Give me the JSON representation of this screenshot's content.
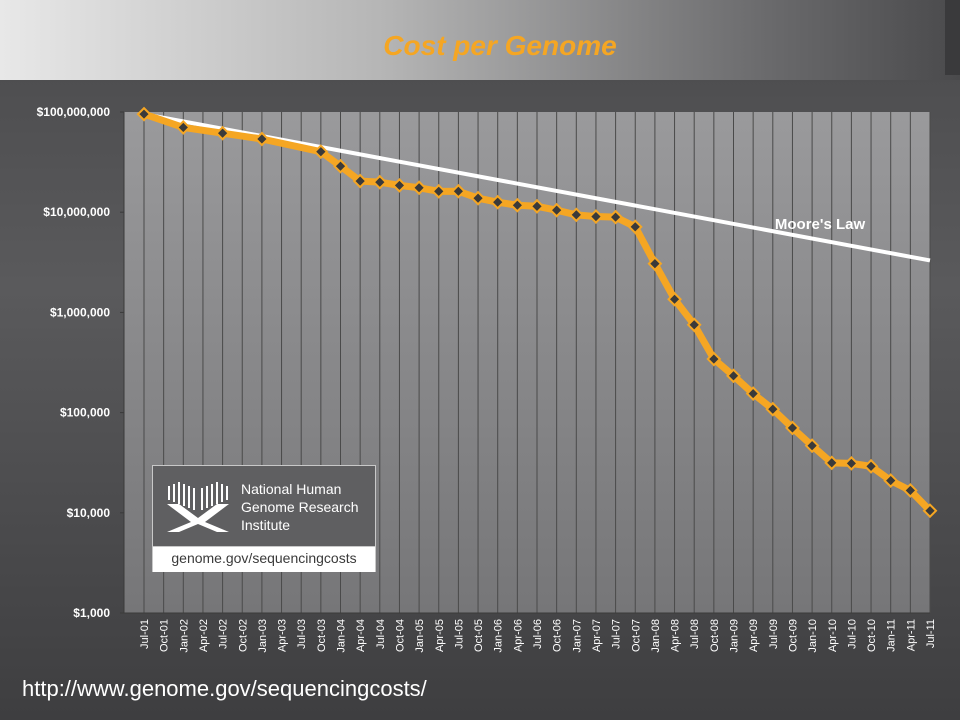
{
  "url_caption": "http://www.genome.gov/sequencingcosts/",
  "logo": {
    "name": "National Human Genome Research Institute",
    "url": "genome.gov/sequencingcosts"
  },
  "chart_data": {
    "type": "line",
    "title": "Cost per Genome",
    "xlabel": "",
    "ylabel": "",
    "yscale": "log",
    "ylim": [
      1000,
      100000000
    ],
    "yticks": [
      1000,
      10000,
      100000,
      1000000,
      10000000,
      100000000
    ],
    "ytick_labels": [
      "$1,000",
      "$10,000",
      "$100,000",
      "$1,000,000",
      "$10,000,000",
      "$100,000,000"
    ],
    "categories": [
      "Jul-01",
      "Oct-01",
      "Jan-02",
      "Apr-02",
      "Jul-02",
      "Oct-02",
      "Jan-03",
      "Apr-03",
      "Jul-03",
      "Oct-03",
      "Jan-04",
      "Apr-04",
      "Jul-04",
      "Oct-04",
      "Jan-05",
      "Apr-05",
      "Jul-05",
      "Oct-05",
      "Jan-06",
      "Apr-06",
      "Jul-06",
      "Oct-06",
      "Jan-07",
      "Apr-07",
      "Jul-07",
      "Oct-07",
      "Jan-08",
      "Apr-08",
      "Jul-08",
      "Oct-08",
      "Jan-09",
      "Apr-09",
      "Jul-09",
      "Oct-09",
      "Jan-10",
      "Apr-10",
      "Jul-10",
      "Oct-10",
      "Jan-11",
      "Apr-11",
      "Jul-11"
    ],
    "series": [
      {
        "name": "",
        "color": "#f5a623",
        "x": [
          "Jul-01",
          "Jan-02",
          "Jul-02",
          "Jan-03",
          "Oct-03",
          "Jan-04",
          "Apr-04",
          "Jul-04",
          "Oct-04",
          "Jan-05",
          "Apr-05",
          "Jul-05",
          "Oct-05",
          "Jan-06",
          "Apr-06",
          "Jul-06",
          "Oct-06",
          "Jan-07",
          "Apr-07",
          "Jul-07",
          "Oct-07",
          "Jan-08",
          "Apr-08",
          "Jul-08",
          "Oct-08",
          "Jan-09",
          "Apr-09",
          "Jul-09",
          "Oct-09",
          "Jan-10",
          "Apr-10",
          "Jul-10",
          "Oct-10",
          "Jan-11",
          "Apr-11",
          "Jul-11"
        ],
        "values": [
          95263072,
          70175437,
          61448422,
          53751684,
          40157554,
          28780376,
          20442576,
          19934346,
          18519312,
          17534970,
          16159699,
          16180224,
          13801124,
          12585659,
          11732535,
          11455315,
          10474556,
          9408739,
          9047003,
          8927342,
          7147571,
          3063820,
          1352982,
          752080,
          342502,
          232735,
          154714,
          108065,
          70333,
          46774,
          31512,
          31125,
          29092,
          20963,
          16712,
          10497
        ]
      },
      {
        "name": "Moore's Law",
        "color": "#ffffff",
        "x": [
          "Jul-01",
          "Jul-11"
        ],
        "values": [
          95263072,
          3300000
        ]
      }
    ],
    "annotations": [
      "Moore's Law"
    ],
    "grid": true
  }
}
